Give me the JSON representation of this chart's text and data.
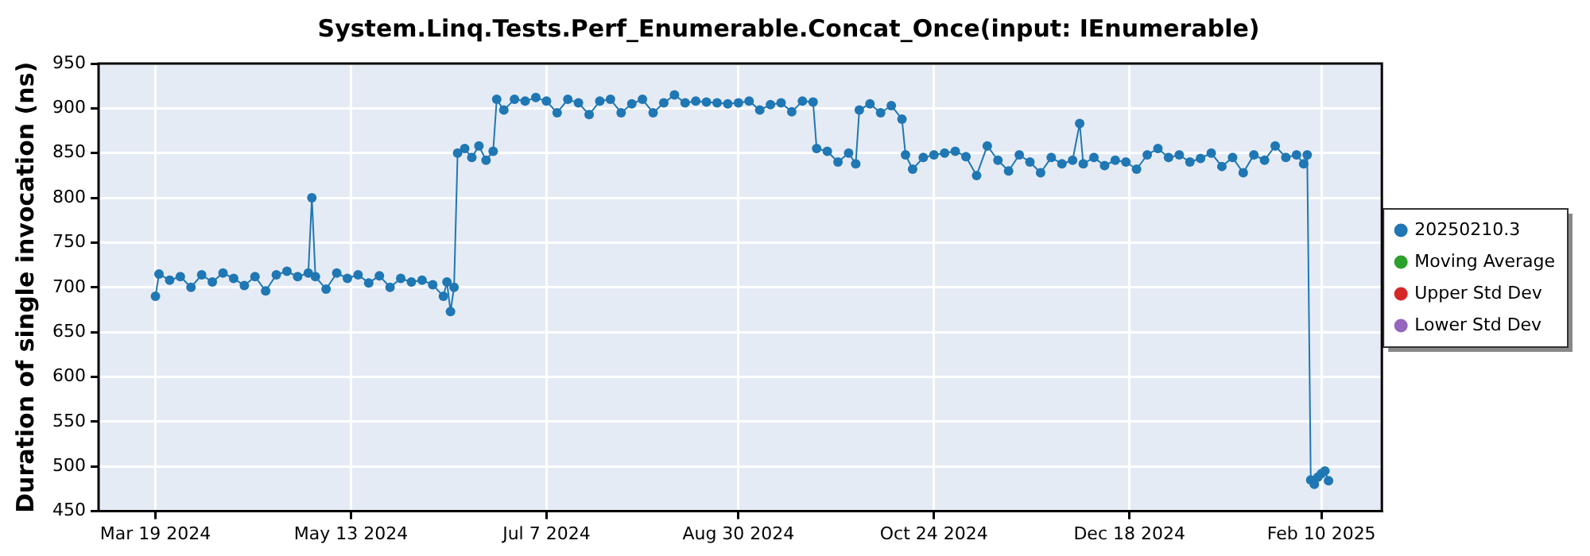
{
  "chart_data": {
    "type": "line",
    "title": "System.Linq.Tests.Perf_Enumerable.Concat_Once(input: IEnumerable)",
    "ylabel": "Duration of single invocation (ns)",
    "xlim": [
      "2024-03-03",
      "2025-02-27"
    ],
    "xticks": [
      {
        "value": "2024-03-19",
        "label": "Mar 19 2024"
      },
      {
        "value": "2024-05-13",
        "label": "May 13 2024"
      },
      {
        "value": "2024-07-07",
        "label": "Jul 7 2024"
      },
      {
        "value": "2024-08-30",
        "label": "Aug 30 2024"
      },
      {
        "value": "2024-10-24",
        "label": "Oct 24 2024"
      },
      {
        "value": "2024-12-18",
        "label": "Dec 18 2024"
      },
      {
        "value": "2025-02-10",
        "label": "Feb 10 2025"
      }
    ],
    "ylim": [
      450,
      950
    ],
    "yticks": [
      450,
      500,
      550,
      600,
      650,
      700,
      750,
      800,
      850,
      900,
      950
    ],
    "grid": true,
    "legend": "right",
    "marker": "circle",
    "line_style": "solid",
    "series": [
      {
        "name": "20250210.3",
        "color": "#1f77b4",
        "x": [
          "2024-03-19",
          "2024-03-20",
          "2024-03-23",
          "2024-03-26",
          "2024-03-29",
          "2024-04-01",
          "2024-04-04",
          "2024-04-07",
          "2024-04-10",
          "2024-04-13",
          "2024-04-16",
          "2024-04-19",
          "2024-04-22",
          "2024-04-25",
          "2024-04-28",
          "2024-05-01",
          "2024-05-02",
          "2024-05-03",
          "2024-05-06",
          "2024-05-09",
          "2024-05-12",
          "2024-05-15",
          "2024-05-18",
          "2024-05-21",
          "2024-05-24",
          "2024-05-27",
          "2024-05-30",
          "2024-06-02",
          "2024-06-05",
          "2024-06-08",
          "2024-06-09",
          "2024-06-10",
          "2024-06-11",
          "2024-06-12",
          "2024-06-14",
          "2024-06-16",
          "2024-06-18",
          "2024-06-20",
          "2024-06-22",
          "2024-06-23",
          "2024-06-25",
          "2024-06-28",
          "2024-07-01",
          "2024-07-04",
          "2024-07-07",
          "2024-07-10",
          "2024-07-13",
          "2024-07-16",
          "2024-07-19",
          "2024-07-22",
          "2024-07-25",
          "2024-07-28",
          "2024-07-31",
          "2024-08-03",
          "2024-08-06",
          "2024-08-09",
          "2024-08-12",
          "2024-08-15",
          "2024-08-18",
          "2024-08-21",
          "2024-08-24",
          "2024-08-27",
          "2024-08-30",
          "2024-09-02",
          "2024-09-05",
          "2024-09-08",
          "2024-09-11",
          "2024-09-14",
          "2024-09-17",
          "2024-09-20",
          "2024-09-21",
          "2024-09-24",
          "2024-09-27",
          "2024-09-30",
          "2024-10-02",
          "2024-10-03",
          "2024-10-06",
          "2024-10-09",
          "2024-10-12",
          "2024-10-15",
          "2024-10-16",
          "2024-10-18",
          "2024-10-21",
          "2024-10-24",
          "2024-10-27",
          "2024-10-30",
          "2024-11-02",
          "2024-11-05",
          "2024-11-08",
          "2024-11-11",
          "2024-11-14",
          "2024-11-17",
          "2024-11-20",
          "2024-11-23",
          "2024-11-26",
          "2024-11-29",
          "2024-12-02",
          "2024-12-04",
          "2024-12-05",
          "2024-12-08",
          "2024-12-11",
          "2024-12-14",
          "2024-12-17",
          "2024-12-20",
          "2024-12-23",
          "2024-12-26",
          "2024-12-29",
          "2025-01-01",
          "2025-01-04",
          "2025-01-07",
          "2025-01-10",
          "2025-01-13",
          "2025-01-16",
          "2025-01-19",
          "2025-01-22",
          "2025-01-25",
          "2025-01-28",
          "2025-01-31",
          "2025-02-03",
          "2025-02-05",
          "2025-02-06",
          "2025-02-07",
          "2025-02-08",
          "2025-02-09",
          "2025-02-10",
          "2025-02-11",
          "2025-02-12"
        ],
        "values": [
          690,
          715,
          708,
          712,
          700,
          714,
          706,
          716,
          710,
          702,
          712,
          696,
          714,
          718,
          712,
          716,
          800,
          712,
          698,
          716,
          710,
          714,
          705,
          713,
          700,
          710,
          706,
          708,
          703,
          690,
          706,
          673,
          700,
          850,
          855,
          845,
          858,
          842,
          852,
          910,
          898,
          910,
          908,
          912,
          908,
          895,
          910,
          906,
          893,
          908,
          910,
          895,
          905,
          910,
          895,
          906,
          915,
          906,
          908,
          907,
          906,
          905,
          906,
          908,
          898,
          904,
          906,
          896,
          908,
          907,
          855,
          852,
          840,
          850,
          838,
          898,
          905,
          895,
          903,
          888,
          848,
          832,
          845,
          848,
          850,
          852,
          846,
          825,
          858,
          842,
          830,
          848,
          840,
          828,
          845,
          838,
          842,
          883,
          838,
          845,
          836,
          842,
          840,
          832,
          848,
          855,
          845,
          848,
          840,
          844,
          850,
          835,
          845,
          828,
          848,
          842,
          858,
          845,
          848,
          838,
          848,
          485,
          480,
          488,
          492,
          495,
          484
        ]
      },
      {
        "name": "Moving Average",
        "color": "#2ca02c"
      },
      {
        "name": "Upper Std Dev",
        "color": "#d62728"
      },
      {
        "name": "Lower Std Dev",
        "color": "#9467bd"
      }
    ]
  }
}
